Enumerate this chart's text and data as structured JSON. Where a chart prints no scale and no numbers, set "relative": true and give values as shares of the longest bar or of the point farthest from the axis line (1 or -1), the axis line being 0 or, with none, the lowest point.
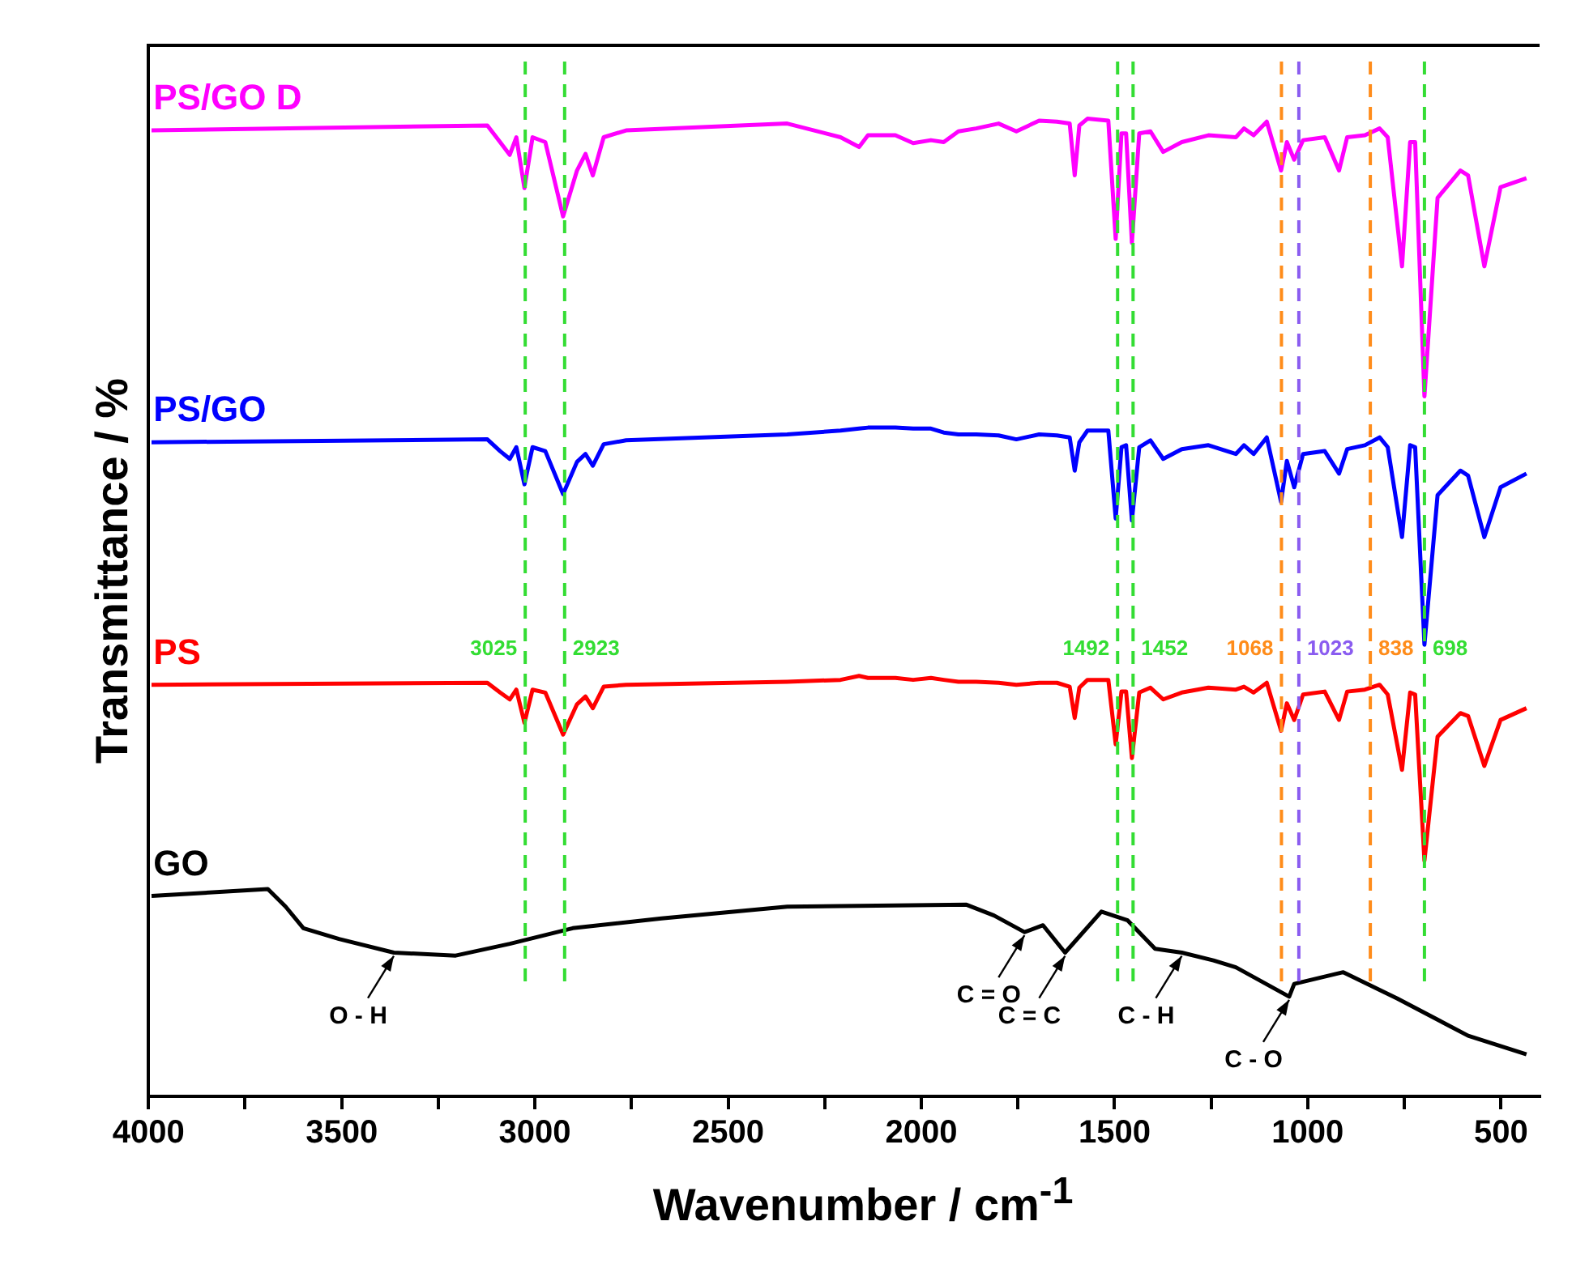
{
  "chart_data": {
    "type": "line",
    "xlabel": "Wavenumber / cm$^{-1}$",
    "ylabel": "Transmittance / %",
    "relative": true,
    "legend": false,
    "grid": false,
    "marker": "none",
    "line_style": "solid",
    "xlim": [
      4000,
      400
    ],
    "xticks": [
      4000,
      {
        "value": 3750,
        "label": null
      },
      3500,
      {
        "value": 3250,
        "label": null
      },
      3000,
      {
        "value": 2750,
        "label": null
      },
      2500,
      {
        "value": 2250,
        "label": null
      },
      2000,
      {
        "value": 1750,
        "label": null
      },
      1500,
      {
        "value": 1250,
        "label": null
      },
      1000,
      {
        "value": 750,
        "label": null
      },
      500
    ],
    "x": [
      3992,
      3123,
      3090,
      3065,
      3048,
      3027,
      3006,
      2973,
      2927,
      2891,
      2869,
      2850,
      2822,
      2764,
      2347,
      2209,
      2161,
      2138,
      2067,
      2021,
      1975,
      1942,
      1904,
      1858,
      1800,
      1754,
      1695,
      1649,
      1616,
      1603,
      1591,
      1570,
      1516,
      1497,
      1482,
      1470,
      1455,
      1436,
      1407,
      1374,
      1326,
      1257,
      1186,
      1165,
      1140,
      1106,
      1069,
      1054,
      1035,
      1012,
      956,
      919,
      898,
      852,
      814,
      793,
      756,
      735,
      722,
      698,
      664,
      605,
      585,
      543,
      501,
      434
    ],
    "series": [
      {
        "name": "PS/GO D",
        "color": "#ff00ff",
        "values": [
          0.988,
          0.993,
          0.976,
          0.963,
          0.981,
          0.929,
          0.981,
          0.976,
          0.9,
          0.947,
          0.964,
          0.942,
          0.981,
          0.988,
          0.995,
          0.981,
          0.971,
          0.983,
          0.983,
          0.975,
          0.978,
          0.976,
          0.987,
          0.99,
          0.995,
          0.987,
          0.998,
          0.997,
          0.995,
          0.942,
          0.993,
          1.0,
          0.998,
          0.877,
          0.985,
          0.985,
          0.873,
          0.985,
          0.987,
          0.966,
          0.976,
          0.983,
          0.981,
          0.99,
          0.983,
          0.997,
          0.947,
          0.976,
          0.958,
          0.978,
          0.981,
          0.947,
          0.981,
          0.983,
          0.99,
          0.981,
          0.849,
          0.976,
          0.976,
          0.716,
          0.919,
          0.947,
          0.942,
          0.849,
          0.93,
          0.939
        ]
      },
      {
        "name": "PS/GO",
        "color": "#0000ff",
        "values": [
          0.669,
          0.672,
          0.66,
          0.652,
          0.664,
          0.626,
          0.664,
          0.66,
          0.616,
          0.649,
          0.657,
          0.645,
          0.667,
          0.671,
          0.677,
          0.681,
          0.683,
          0.684,
          0.684,
          0.683,
          0.683,
          0.679,
          0.677,
          0.677,
          0.676,
          0.672,
          0.677,
          0.676,
          0.674,
          0.64,
          0.669,
          0.681,
          0.681,
          0.591,
          0.664,
          0.666,
          0.589,
          0.664,
          0.671,
          0.652,
          0.662,
          0.666,
          0.657,
          0.666,
          0.657,
          0.674,
          0.608,
          0.65,
          0.623,
          0.657,
          0.66,
          0.637,
          0.662,
          0.666,
          0.674,
          0.664,
          0.572,
          0.666,
          0.664,
          0.462,
          0.615,
          0.64,
          0.635,
          0.572,
          0.623,
          0.637
        ]
      },
      {
        "name": "PS",
        "color": "#ff0000",
        "values": [
          0.421,
          0.423,
          0.413,
          0.406,
          0.416,
          0.382,
          0.416,
          0.413,
          0.37,
          0.401,
          0.409,
          0.397,
          0.419,
          0.421,
          0.424,
          0.426,
          0.43,
          0.428,
          0.428,
          0.426,
          0.428,
          0.426,
          0.424,
          0.424,
          0.423,
          0.421,
          0.423,
          0.423,
          0.419,
          0.387,
          0.418,
          0.426,
          0.426,
          0.36,
          0.414,
          0.414,
          0.346,
          0.413,
          0.418,
          0.406,
          0.413,
          0.418,
          0.416,
          0.419,
          0.413,
          0.423,
          0.374,
          0.402,
          0.385,
          0.411,
          0.414,
          0.385,
          0.414,
          0.416,
          0.421,
          0.411,
          0.334,
          0.413,
          0.411,
          0.241,
          0.368,
          0.392,
          0.389,
          0.338,
          0.385,
          0.397
        ]
      },
      {
        "name": "GO",
        "color": "#000000",
        "x": [
          3992,
          3691,
          3645,
          3599,
          3507,
          3365,
          3205,
          3065,
          2902,
          2672,
          2347,
          1883,
          1812,
          1733,
          1685,
          1628,
          1534,
          1466,
          1395,
          1326,
          1244,
          1186,
          1048,
          1035,
          908,
          768,
          585,
          434
        ],
        "values": [
          0.205,
          0.212,
          0.194,
          0.172,
          0.161,
          0.147,
          0.144,
          0.156,
          0.172,
          0.182,
          0.194,
          0.196,
          0.185,
          0.168,
          0.175,
          0.147,
          0.189,
          0.18,
          0.151,
          0.147,
          0.139,
          0.132,
          0.102,
          0.115,
          0.127,
          0.1,
          0.062,
          0.043
        ]
      }
    ],
    "ref_lines": [
      {
        "axis": "x",
        "value": 3025,
        "label": "3025",
        "color": "#33dd33",
        "line_style": "dashed"
      },
      {
        "axis": "x",
        "value": 2923,
        "label": "2923",
        "color": "#33dd33",
        "line_style": "dashed"
      },
      {
        "axis": "x",
        "value": 1492,
        "label": "1492",
        "color": "#33dd33",
        "line_style": "dashed"
      },
      {
        "axis": "x",
        "value": 1452,
        "label": "1452",
        "color": "#33dd33",
        "line_style": "dashed"
      },
      {
        "axis": "x",
        "value": 1068,
        "label": "1068",
        "color": "#ff8c1a",
        "line_style": "dashed"
      },
      {
        "axis": "x",
        "value": 1023,
        "label": "1023",
        "color": "#8a5cf0",
        "line_style": "dashed"
      },
      {
        "axis": "x",
        "value": 838,
        "label": "838",
        "color": "#ff8c1a",
        "line_style": "dashed"
      },
      {
        "axis": "x",
        "value": 698,
        "label": "698",
        "color": "#33dd33",
        "line_style": "dashed"
      }
    ],
    "annotations": [
      {
        "text": "O - H",
        "x": 3365,
        "y": 0.147
      },
      {
        "text": "C = O",
        "x": 1733,
        "y": 0.168
      },
      {
        "text": "C = C",
        "x": 1628,
        "y": 0.147
      },
      {
        "text": "C - H",
        "x": 1326,
        "y": 0.147
      },
      {
        "text": "C - O",
        "x": 1048,
        "y": 0.102
      }
    ]
  }
}
